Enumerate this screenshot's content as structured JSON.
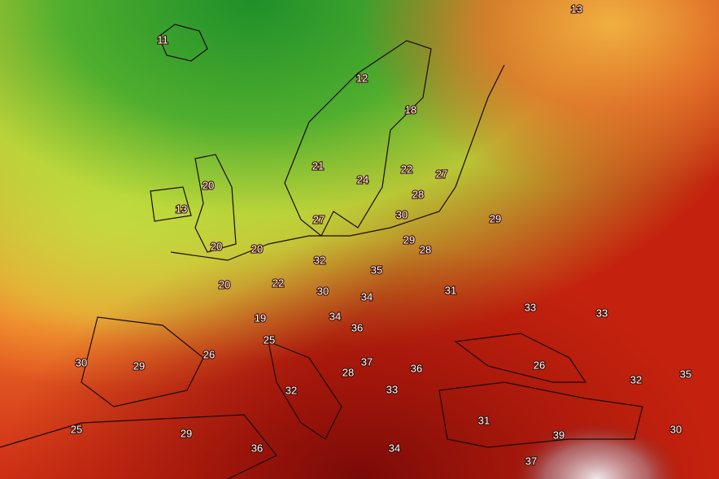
{
  "temperature_labels": [
    13,
    11,
    12,
    18,
    21,
    24,
    22,
    27,
    20,
    28,
    13,
    27,
    30,
    29,
    29,
    28,
    20,
    20,
    32,
    35,
    20,
    22,
    30,
    31,
    34,
    33,
    33,
    34,
    19,
    36,
    25,
    26,
    37,
    30,
    29,
    26,
    36,
    28,
    32,
    35,
    32,
    33,
    31,
    25,
    29,
    39,
    30,
    36,
    34,
    37
  ]
}
